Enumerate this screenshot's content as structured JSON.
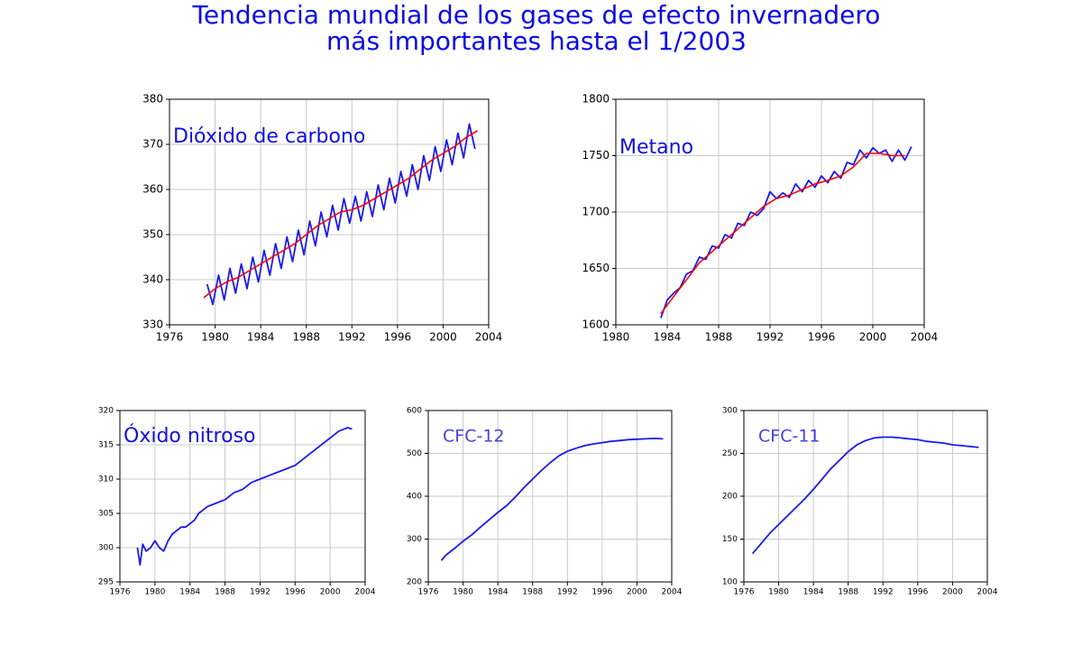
{
  "title": [
    "Tendencia mundial de los gases de efecto invernadero",
    "más importantes hasta el 1/2003"
  ],
  "chart_data": [
    {
      "type": "line",
      "title": "Dióxido de carbono",
      "grid": true,
      "xlim": [
        1976,
        2004
      ],
      "xticks": [
        1976,
        1980,
        1984,
        1988,
        1992,
        1996,
        2000,
        2004
      ],
      "ylim": [
        330,
        380
      ],
      "yticks": [
        330,
        340,
        350,
        360,
        370,
        380
      ],
      "series": [
        {
          "color": "#1a1aee",
          "x": [
            1979.3,
            1979.8,
            1980.3,
            1980.8,
            1981.3,
            1981.8,
            1982.3,
            1982.8,
            1983.3,
            1983.8,
            1984.3,
            1984.8,
            1985.3,
            1985.8,
            1986.3,
            1986.8,
            1987.3,
            1987.8,
            1988.3,
            1988.8,
            1989.3,
            1989.8,
            1990.3,
            1990.8,
            1991.3,
            1991.8,
            1992.3,
            1992.8,
            1993.3,
            1993.8,
            1994.3,
            1994.8,
            1995.3,
            1995.8,
            1996.3,
            1996.8,
            1997.3,
            1997.8,
            1998.3,
            1998.8,
            1999.3,
            1999.8,
            2000.3,
            2000.8,
            2001.3,
            2001.8,
            2002.3,
            2002.8
          ],
          "values": [
            339,
            334.5,
            341,
            335.5,
            342.5,
            337,
            343.5,
            338,
            345,
            339.5,
            346.5,
            341,
            348,
            342.5,
            349.5,
            344,
            351,
            345.5,
            353,
            347.5,
            355,
            349.5,
            356.5,
            351,
            358,
            352.5,
            358.5,
            353,
            359.5,
            354,
            361,
            355.5,
            362.5,
            357,
            364,
            358.5,
            365.5,
            360,
            367.5,
            362,
            369.5,
            364,
            371,
            365.5,
            372.5,
            367,
            374.5,
            369
          ]
        },
        {
          "color": "#ff0000",
          "x": [
            1979,
            1980,
            1981,
            1982,
            1983,
            1984,
            1985,
            1986,
            1987,
            1988,
            1989,
            1990,
            1991,
            1992,
            1993,
            1994,
            1995,
            1996,
            1997,
            1998,
            1999,
            2000,
            2001,
            2002,
            2003
          ],
          "values": [
            336,
            338,
            339.5,
            340.5,
            342,
            343.5,
            345,
            346.5,
            348,
            350,
            352,
            353.5,
            355,
            355.5,
            356.5,
            358,
            359.5,
            361,
            362.5,
            364.5,
            366.5,
            368,
            369.5,
            371.5,
            373
          ]
        }
      ]
    },
    {
      "type": "line",
      "title": "Metano",
      "grid": true,
      "xlim": [
        1980,
        2004
      ],
      "xticks": [
        1980,
        1984,
        1988,
        1992,
        1996,
        2000,
        2004
      ],
      "ylim": [
        1600,
        1800
      ],
      "yticks": [
        1600,
        1650,
        1700,
        1750,
        1800
      ],
      "series": [
        {
          "color": "#1a1aee",
          "x": [
            1983.5,
            1984,
            1984.5,
            1985,
            1985.5,
            1986,
            1986.5,
            1987,
            1987.5,
            1988,
            1988.5,
            1989,
            1989.5,
            1990,
            1990.5,
            1991,
            1991.5,
            1992,
            1992.5,
            1993,
            1993.5,
            1994,
            1994.5,
            1995,
            1995.5,
            1996,
            1996.5,
            1997,
            1997.5,
            1998,
            1998.5,
            1999,
            1999.5,
            2000,
            2000.5,
            2001,
            2001.5,
            2002,
            2002.5,
            2003
          ],
          "values": [
            1606,
            1622,
            1628,
            1633,
            1645,
            1648,
            1660,
            1658,
            1670,
            1668,
            1680,
            1677,
            1690,
            1688,
            1700,
            1697,
            1703,
            1718,
            1712,
            1717,
            1713,
            1725,
            1718,
            1728,
            1722,
            1732,
            1726,
            1736,
            1730,
            1744,
            1742,
            1755,
            1748,
            1757,
            1752,
            1755,
            1745,
            1755,
            1746,
            1758
          ]
        },
        {
          "color": "#ff0000",
          "x": [
            1983.5,
            1984.5,
            1985.5,
            1986.5,
            1987.5,
            1988.5,
            1989.5,
            1990.5,
            1991.5,
            1992.5,
            1993.5,
            1994.5,
            1995.5,
            1996.5,
            1997.5,
            1998.5,
            1999.5,
            2000.5,
            2001.5,
            2002.5
          ],
          "values": [
            1610,
            1625,
            1640,
            1655,
            1665,
            1675,
            1685,
            1695,
            1705,
            1712,
            1715,
            1720,
            1725,
            1728,
            1732,
            1740,
            1752,
            1752,
            1750,
            1750
          ]
        }
      ]
    },
    {
      "type": "line",
      "title": "Óxido nitroso",
      "grid": true,
      "xlim": [
        1976,
        2004
      ],
      "xticks": [
        1976,
        1980,
        1984,
        1988,
        1992,
        1996,
        2000,
        2004
      ],
      "ylim": [
        295,
        320
      ],
      "yticks": [
        295,
        300,
        305,
        310,
        315,
        320
      ],
      "series": [
        {
          "color": "#1a1aee",
          "x": [
            1978,
            1978.3,
            1978.6,
            1979,
            1979.5,
            1980,
            1980.5,
            1981,
            1981.5,
            1982,
            1982.5,
            1983,
            1983.5,
            1984,
            1984.5,
            1985,
            1985.5,
            1986,
            1987,
            1988,
            1989,
            1990,
            1991,
            1992,
            1993,
            1994,
            1995,
            1996,
            1997,
            1998,
            1999,
            2000,
            2001,
            2002,
            2002.5
          ],
          "values": [
            300,
            297.5,
            300.5,
            299.5,
            300,
            301,
            300,
            299.5,
            301,
            302,
            302.5,
            303,
            303,
            303.5,
            304,
            305,
            305.5,
            306,
            306.5,
            307,
            308,
            308.5,
            309.5,
            310,
            310.5,
            311,
            311.5,
            312,
            313,
            314,
            315,
            316,
            317,
            317.5,
            317.3
          ]
        }
      ]
    },
    {
      "type": "line",
      "title": "CFC-12",
      "grid": true,
      "xlim": [
        1976,
        2004
      ],
      "xticks": [
        1976,
        1980,
        1984,
        1988,
        1992,
        1996,
        2000,
        2004
      ],
      "ylim": [
        200,
        600
      ],
      "yticks": [
        200,
        300,
        400,
        500,
        600
      ],
      "series": [
        {
          "color": "#1a1aee",
          "x": [
            1977.5,
            1978,
            1979,
            1980,
            1981,
            1982,
            1983,
            1984,
            1985,
            1986,
            1987,
            1988,
            1989,
            1990,
            1991,
            1992,
            1993,
            1994,
            1995,
            1996,
            1997,
            1998,
            1999,
            2000,
            2001,
            2002,
            2003
          ],
          "values": [
            250,
            262,
            278,
            295,
            310,
            328,
            345,
            362,
            378,
            398,
            420,
            440,
            460,
            478,
            494,
            505,
            512,
            518,
            522,
            525,
            528,
            530,
            532,
            533,
            534,
            535,
            534
          ]
        }
      ]
    },
    {
      "type": "line",
      "title": "CFC-11",
      "grid": true,
      "xlim": [
        1976,
        2004
      ],
      "xticks": [
        1976,
        1980,
        1984,
        1988,
        1992,
        1996,
        2000,
        2004
      ],
      "ylim": [
        100,
        300
      ],
      "yticks": [
        100,
        150,
        200,
        250,
        300
      ],
      "series": [
        {
          "color": "#1a1aee",
          "x": [
            1977,
            1978,
            1979,
            1980,
            1981,
            1982,
            1983,
            1984,
            1985,
            1986,
            1987,
            1988,
            1989,
            1990,
            1991,
            1992,
            1993,
            1994,
            1995,
            1996,
            1997,
            1998,
            1999,
            2000,
            2001,
            2002,
            2003
          ],
          "values": [
            133,
            145,
            157,
            167,
            177,
            187,
            197,
            208,
            220,
            232,
            242,
            252,
            260,
            265,
            268,
            269,
            269,
            268,
            267,
            266,
            264,
            263,
            262,
            260,
            259,
            258,
            257
          ]
        }
      ]
    }
  ]
}
